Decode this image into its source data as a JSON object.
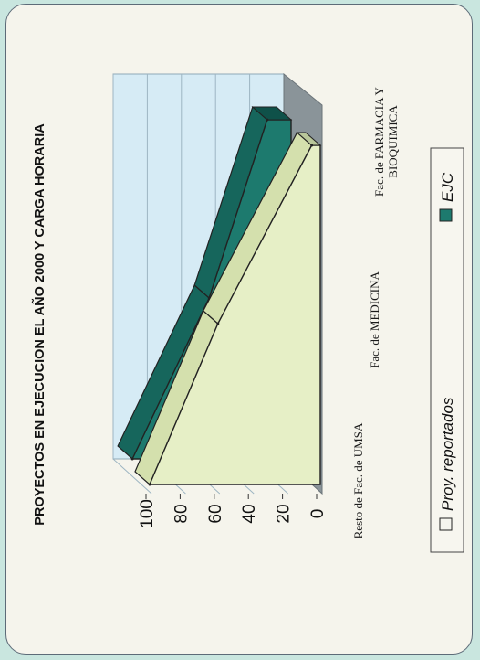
{
  "chart_data": {
    "type": "area",
    "view": "3d-area",
    "title": "PROYECTOS EN EJECUCION EL AÑO 2000 Y CARGA HORARIA",
    "categories": [
      "Resto de Fac. de UMSA",
      "Fac. de MEDICINA",
      "Fac. de FARMACIA Y BIOQUIMICA"
    ],
    "y_ticks": [
      "0",
      "20",
      "40",
      "60",
      "80",
      "100"
    ],
    "ylim": [
      0,
      100
    ],
    "series": [
      {
        "name": "Proy. reportados",
        "values": [
          100,
          60,
          5
        ],
        "color": "#e6efc6"
      },
      {
        "name": "EJC",
        "values": [
          93,
          48,
          14
        ],
        "color": "#1d7a6e"
      }
    ],
    "legend_position": "bottom",
    "grid": true
  }
}
